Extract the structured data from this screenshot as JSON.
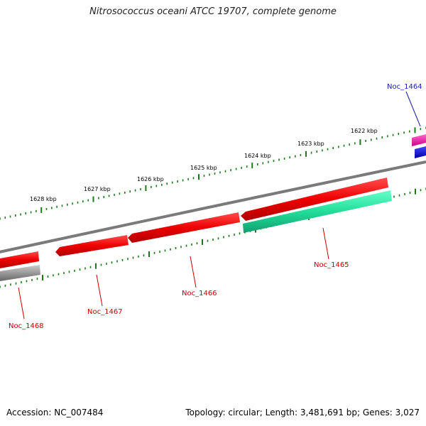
{
  "title": "Nitrosococcus oceani ATCC 19707, complete genome",
  "footer": {
    "accession": "Accession: NC_007484",
    "summary": "Topology: circular; Length: 3,481,691 bp; Genes: 3,027"
  },
  "scale_ticks": [
    {
      "label": "1622 kbp"
    },
    {
      "label": "1623 kbp"
    },
    {
      "label": "1624 kbp"
    },
    {
      "label": "1625 kbp"
    },
    {
      "label": "1626 kbp"
    },
    {
      "label": "1627 kbp"
    },
    {
      "label": "1628 kbp"
    }
  ],
  "genes": [
    {
      "name": "Noc_1464",
      "color": "#e0199f",
      "label_color": "#1a1aaa"
    },
    {
      "name": "Noc_1465",
      "color": "#ee0000",
      "label_color": "#cc0000"
    },
    {
      "name": "Noc_1466",
      "color": "#ee0000",
      "label_color": "#cc0000"
    },
    {
      "name": "Noc_1467",
      "color": "#ee0000",
      "label_color": "#cc0000"
    },
    {
      "name": "Noc_1468",
      "color": "#ee0000",
      "label_color": "#cc0000"
    }
  ],
  "colors": {
    "backbone": "#808080",
    "tick": "#1a7a1a",
    "cds_red": "#ee0000",
    "rna_green": "#22dd99",
    "blue": "#0000ee",
    "gray": "#999999"
  }
}
